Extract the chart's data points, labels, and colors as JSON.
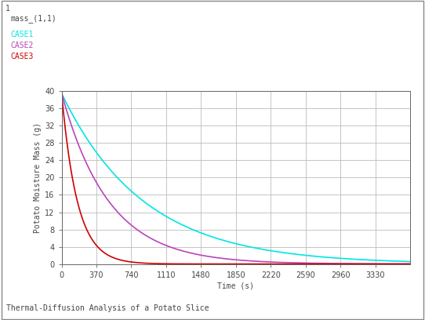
{
  "subtitle": "Thermal-Diffusion Analysis of a Potato Slice",
  "xlabel": "Time (s)",
  "ylabel": "Potato Moisture Mass (g)",
  "xlim": [
    0,
    3700
  ],
  "ylim": [
    0,
    40
  ],
  "xticks": [
    0,
    370,
    740,
    1110,
    1480,
    1850,
    2220,
    2590,
    2960,
    3330
  ],
  "yticks": [
    0,
    4,
    8,
    12,
    16,
    20,
    24,
    28,
    32,
    36,
    40
  ],
  "case1_color": "#00E5E5",
  "case2_color": "#BB44BB",
  "case3_color": "#CC0000",
  "case1_label": "CASE1",
  "case2_label": "CASE2",
  "case3_label": "CASE3",
  "case1_decay": 0.00115,
  "case2_decay": 0.002,
  "case3_decay": 0.006,
  "initial_mass": 39.5,
  "background_color": "#FFFFFF",
  "grid_color": "#BBBBBB",
  "axis_bg": "#FFFFFF",
  "text_color": "#444444",
  "tick_fontsize": 7,
  "label_fontsize": 7,
  "header1": "1",
  "header2": "mass_(1,1)"
}
